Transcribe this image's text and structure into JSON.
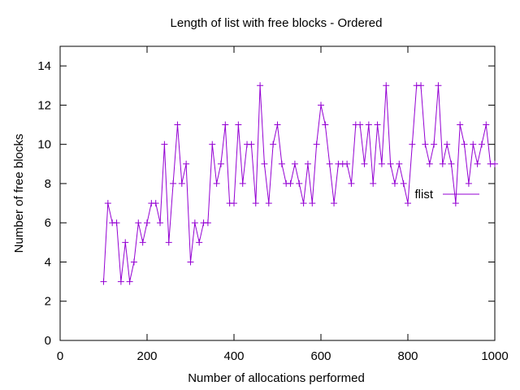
{
  "chart_data": {
    "type": "line",
    "title": "Length of list with free blocks - Ordered",
    "xlabel": "Number of allocations performed",
    "ylabel": "Number of free blocks",
    "xlim": [
      0,
      1000
    ],
    "ylim": [
      0,
      15
    ],
    "x_ticks": [
      0,
      200,
      400,
      600,
      800,
      1000
    ],
    "y_ticks": [
      0,
      2,
      4,
      6,
      8,
      10,
      12,
      14
    ],
    "grid": false,
    "legend_position": "right",
    "line_color": "#9400d3",
    "series": [
      {
        "name": "flist",
        "x": [
          100,
          110,
          120,
          130,
          140,
          150,
          160,
          170,
          180,
          190,
          200,
          210,
          220,
          230,
          240,
          250,
          260,
          270,
          280,
          290,
          300,
          310,
          320,
          330,
          340,
          350,
          360,
          370,
          380,
          390,
          400,
          410,
          420,
          430,
          440,
          450,
          460,
          470,
          480,
          490,
          500,
          510,
          520,
          530,
          540,
          550,
          560,
          570,
          580,
          590,
          600,
          610,
          620,
          630,
          640,
          650,
          660,
          670,
          680,
          690,
          700,
          710,
          720,
          730,
          740,
          750,
          760,
          770,
          780,
          790,
          800,
          810,
          820,
          830,
          840,
          850,
          860,
          870,
          880,
          890,
          900,
          910,
          920,
          930,
          940,
          950,
          960,
          970,
          980,
          990,
          1000
        ],
        "y": [
          3,
          7,
          6,
          6,
          3,
          5,
          3,
          4,
          6,
          5,
          6,
          7,
          7,
          6,
          10,
          5,
          8,
          11,
          8,
          9,
          4,
          6,
          5,
          6,
          6,
          10,
          8,
          9,
          11,
          7,
          7,
          11,
          8,
          10,
          10,
          7,
          13,
          9,
          7,
          10,
          11,
          9,
          8,
          8,
          9,
          8,
          7,
          9,
          7,
          10,
          12,
          11,
          9,
          7,
          9,
          9,
          9,
          8,
          11,
          11,
          9,
          11,
          8,
          11,
          9,
          13,
          9,
          8,
          9,
          8,
          7,
          10,
          13,
          13,
          10,
          9,
          10,
          13,
          9,
          10,
          9,
          7,
          11,
          10,
          8,
          10,
          9,
          10,
          11,
          9,
          9
        ]
      }
    ]
  }
}
